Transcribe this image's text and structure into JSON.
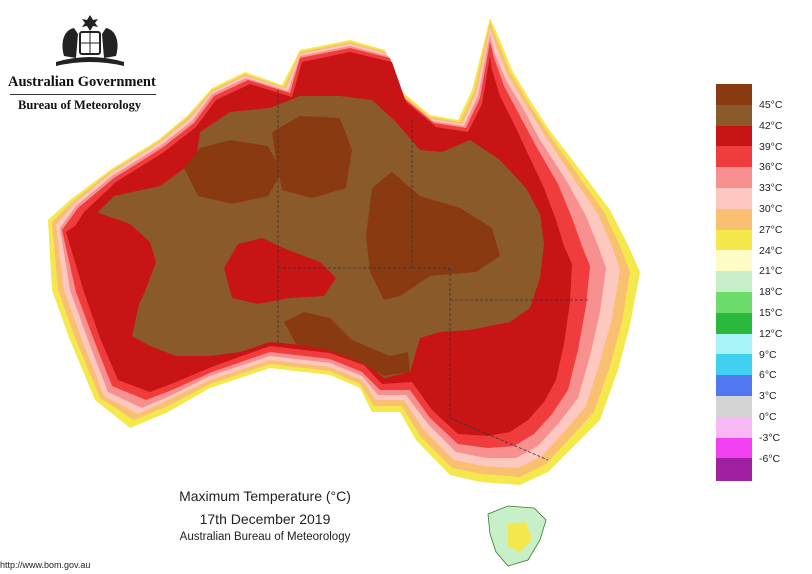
{
  "header": {
    "government": "Australian Government",
    "bureau": "Bureau of Meteorology"
  },
  "legend": [
    {
      "label": "45°C",
      "color": "#8a3a10"
    },
    {
      "label": "42°C",
      "color": "#8b5a2b"
    },
    {
      "label": "39°C",
      "color": "#c81414"
    },
    {
      "label": "36°C",
      "color": "#f03c3c"
    },
    {
      "label": "33°C",
      "color": "#f89090"
    },
    {
      "label": "30°C",
      "color": "#fcc8c0"
    },
    {
      "label": "27°C",
      "color": "#f8c070"
    },
    {
      "label": "24°C",
      "color": "#f4e84c"
    },
    {
      "label": "21°C",
      "color": "#fcfcc4"
    },
    {
      "label": "18°C",
      "color": "#c8f0c8"
    },
    {
      "label": "15°C",
      "color": "#6cdc6c"
    },
    {
      "label": "12°C",
      "color": "#2cb83c"
    },
    {
      "label": "9°C",
      "color": "#a8f4f8"
    },
    {
      "label": "6°C",
      "color": "#40d0f0"
    },
    {
      "label": "3°C",
      "color": "#5078f0"
    },
    {
      "label": "0°C",
      "color": "#d4d4d4"
    },
    {
      "label": "-3°C",
      "color": "#f8b8f4"
    },
    {
      "label": "-6°C",
      "color": "#f040f0"
    },
    {
      "label": "",
      "color": "#a020a0"
    }
  ],
  "caption": {
    "title": "Maximum Temperature (°C)",
    "date": "17th December 2019",
    "source": "Australian Bureau of Meteorology"
  },
  "footer": {
    "website": "http://www.bom.gov.au"
  },
  "colors": {
    "ocean": "#ffffff",
    "outline": "#5a2a0a",
    "border": "#333333"
  }
}
